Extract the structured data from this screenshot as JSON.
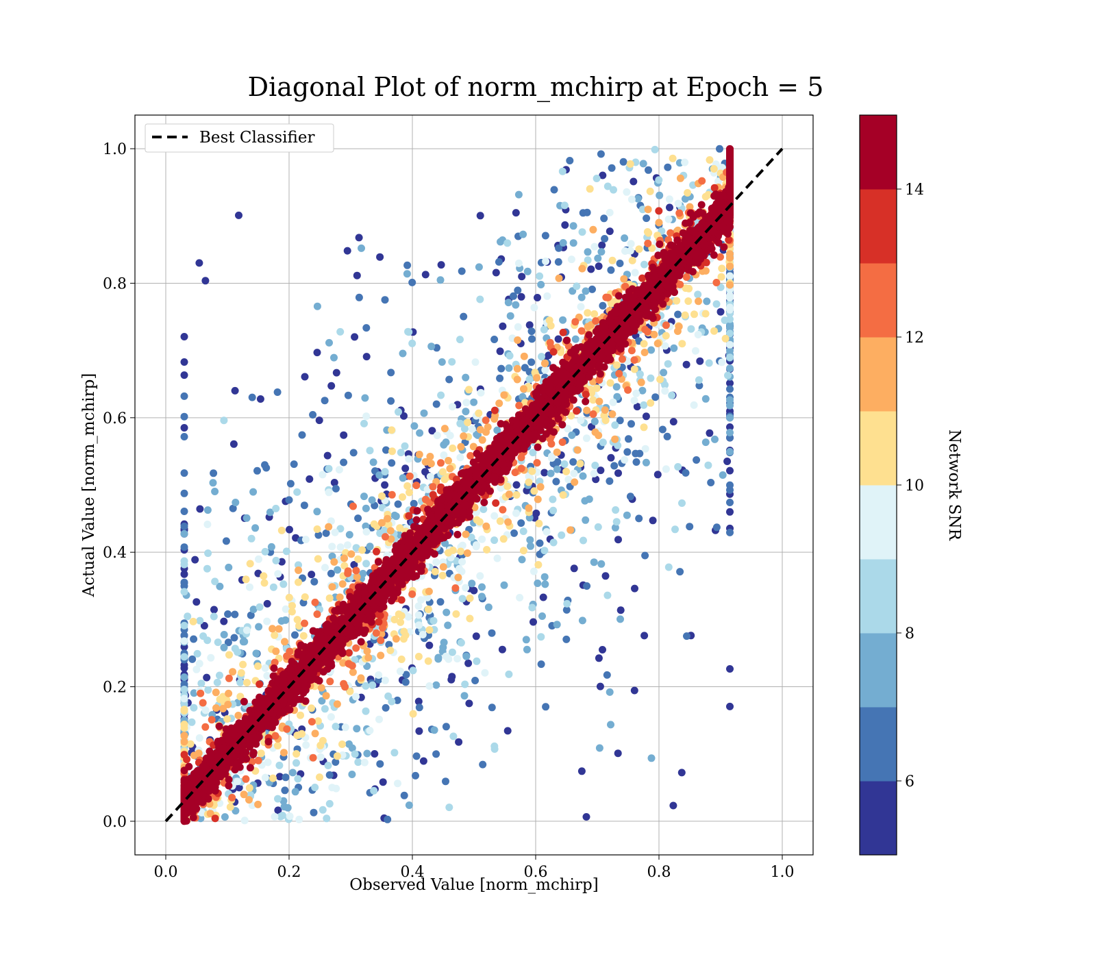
{
  "chart_data": {
    "type": "scatter",
    "title": "Diagonal Plot of norm_mchirp at Epoch = 5",
    "xlabel": "Observed Value [norm_mchirp]",
    "ylabel": "Actual Value [norm_mchirp]",
    "xlim": [
      -0.05,
      1.05
    ],
    "ylim": [
      -0.05,
      1.05
    ],
    "x_ticks": [
      "0.0",
      "0.2",
      "0.4",
      "0.6",
      "0.8",
      "1.0"
    ],
    "y_ticks": [
      "0.0",
      "0.2",
      "0.4",
      "0.6",
      "0.8",
      "1.0"
    ],
    "grid": true,
    "legend": {
      "location": "upper-left",
      "entries": [
        {
          "label": "Best Classifier",
          "style": "black dashed line"
        }
      ]
    },
    "reference_line": {
      "x": [
        0.0,
        1.0
      ],
      "y": [
        0.0,
        1.0
      ],
      "color": "#000000",
      "style": "dashed"
    },
    "colorbar": {
      "label": "Network SNR",
      "range": [
        5,
        15
      ],
      "ticks": [
        "6",
        "8",
        "10",
        "12",
        "14"
      ],
      "colormap": "RdYlBu_r",
      "colors": [
        "#313695",
        "#4575b4",
        "#74add1",
        "#abd9e9",
        "#e0f3f8",
        "#fee090",
        "#fdae61",
        "#f46d43",
        "#d73027",
        "#a50026"
      ]
    },
    "data_description": "Dense cloud of points (observed vs actual norm_mchirp) concentrated along the diagonal; high-SNR points (dark red, ≥14) form a tight band around y = x, lower-SNR points (blue) spread farther from the diagonal. Observed values span about 0.03–0.91, actual values about 0.0–1.0."
  }
}
